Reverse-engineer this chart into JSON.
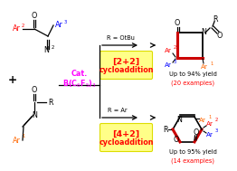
{
  "bg_color": "#ffffff",
  "yellow_box_color": "#ffff88",
  "yellow_box_edge": "#dddd00",
  "red_color": "#ff0000",
  "magenta_color": "#ff00ff",
  "dark_red_bond": "#cc0000",
  "box1_line1": "[2+2]",
  "box1_line2": "cycloaddition",
  "box2_line1": "[4+2]",
  "box2_line2": "cycloaddition",
  "yield1": "Up to 94% yield",
  "examples1": "(20 examples)",
  "yield2": "Up to 95% yield",
  "examples2": "(14 examples)",
  "ar1_color": "#ff6600",
  "ar2_color": "#ff0000",
  "ar3_color": "#0000ff"
}
